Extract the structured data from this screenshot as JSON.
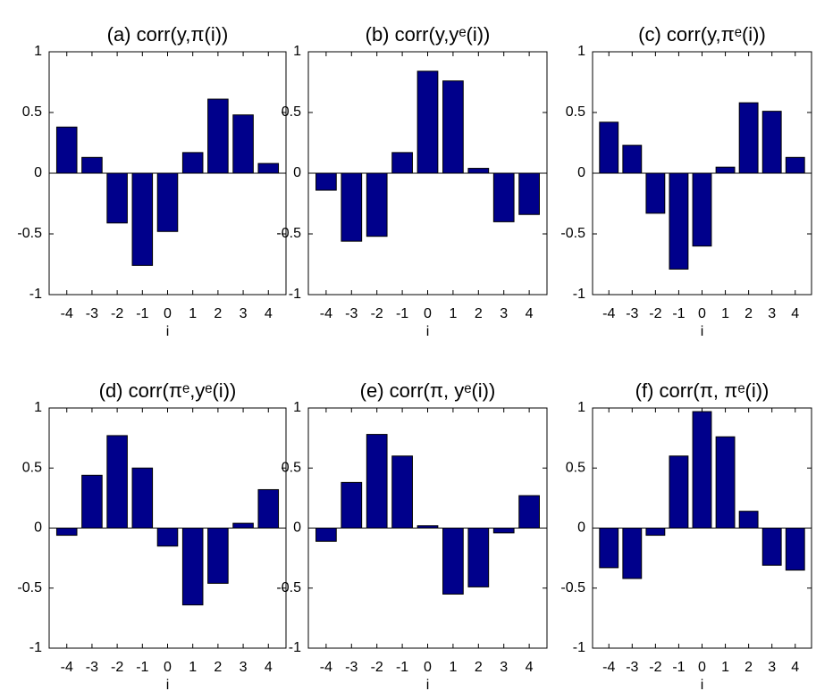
{
  "chart_data": [
    {
      "type": "bar",
      "title": "(a) corr(y,π(i))",
      "xlabel": "i",
      "x": [
        -4,
        -3,
        -2,
        -1,
        0,
        1,
        2,
        3,
        4
      ],
      "values": [
        0.38,
        0.13,
        -0.41,
        -0.76,
        -0.48,
        0.17,
        0.61,
        0.48,
        0.08
      ],
      "color": "#00008b",
      "xlim": [
        -4.7,
        4.7
      ],
      "ylim": [
        -1,
        1
      ],
      "xticks": [
        -4,
        -3,
        -2,
        -1,
        0,
        1,
        2,
        3,
        4
      ],
      "yticks": [
        -1,
        -0.5,
        0,
        0.5,
        1
      ]
    },
    {
      "type": "bar",
      "title": "(b) corr(y,yᵉ(i))",
      "xlabel": "i",
      "x": [
        -4,
        -3,
        -2,
        -1,
        0,
        1,
        2,
        3,
        4
      ],
      "values": [
        -0.14,
        -0.56,
        -0.52,
        0.17,
        0.84,
        0.76,
        0.04,
        -0.4,
        -0.34
      ],
      "color": "#00008b",
      "xlim": [
        -4.7,
        4.7
      ],
      "ylim": [
        -1,
        1
      ],
      "xticks": [
        -4,
        -3,
        -2,
        -1,
        0,
        1,
        2,
        3,
        4
      ],
      "yticks": [
        -1,
        -0.5,
        0,
        0.5,
        1
      ]
    },
    {
      "type": "bar",
      "title": "(c) corr(y,πᵉ(i))",
      "xlabel": "i",
      "x": [
        -4,
        -3,
        -2,
        -1,
        0,
        1,
        2,
        3,
        4
      ],
      "values": [
        0.42,
        0.23,
        -0.33,
        -0.79,
        -0.6,
        0.05,
        0.58,
        0.51,
        0.13
      ],
      "color": "#00008b",
      "xlim": [
        -4.7,
        4.7
      ],
      "ylim": [
        -1,
        1
      ],
      "xticks": [
        -4,
        -3,
        -2,
        -1,
        0,
        1,
        2,
        3,
        4
      ],
      "yticks": [
        -1,
        -0.5,
        0,
        0.5,
        1
      ]
    },
    {
      "type": "bar",
      "title": "(d) corr(πᵉ,yᵉ(i))",
      "xlabel": "i",
      "x": [
        -4,
        -3,
        -2,
        -1,
        0,
        1,
        2,
        3,
        4
      ],
      "values": [
        -0.06,
        0.44,
        0.77,
        0.5,
        -0.15,
        -0.64,
        -0.46,
        0.04,
        0.32
      ],
      "color": "#00008b",
      "xlim": [
        -4.7,
        4.7
      ],
      "ylim": [
        -1,
        1
      ],
      "xticks": [
        -4,
        -3,
        -2,
        -1,
        0,
        1,
        2,
        3,
        4
      ],
      "yticks": [
        -1,
        -0.5,
        0,
        0.5,
        1
      ]
    },
    {
      "type": "bar",
      "title": "(e) corr(π, yᵉ(i))",
      "xlabel": "i",
      "x": [
        -4,
        -3,
        -2,
        -1,
        0,
        1,
        2,
        3,
        4
      ],
      "values": [
        -0.11,
        0.38,
        0.78,
        0.6,
        0.02,
        -0.55,
        -0.49,
        -0.04,
        0.27
      ],
      "color": "#00008b",
      "xlim": [
        -4.7,
        4.7
      ],
      "ylim": [
        -1,
        1
      ],
      "xticks": [
        -4,
        -3,
        -2,
        -1,
        0,
        1,
        2,
        3,
        4
      ],
      "yticks": [
        -1,
        -0.5,
        0,
        0.5,
        1
      ]
    },
    {
      "type": "bar",
      "title": "(f) corr(π, πᵉ(i))",
      "xlabel": "i",
      "x": [
        -4,
        -3,
        -2,
        -1,
        0,
        1,
        2,
        3,
        4
      ],
      "values": [
        -0.33,
        -0.42,
        -0.06,
        0.6,
        0.97,
        0.76,
        0.14,
        -0.31,
        -0.35
      ],
      "color": "#00008b",
      "xlim": [
        -4.7,
        4.7
      ],
      "ylim": [
        -1,
        1
      ],
      "xticks": [
        -4,
        -3,
        -2,
        -1,
        0,
        1,
        2,
        3,
        4
      ],
      "yticks": [
        -1,
        -0.5,
        0,
        0.5,
        1
      ]
    }
  ]
}
